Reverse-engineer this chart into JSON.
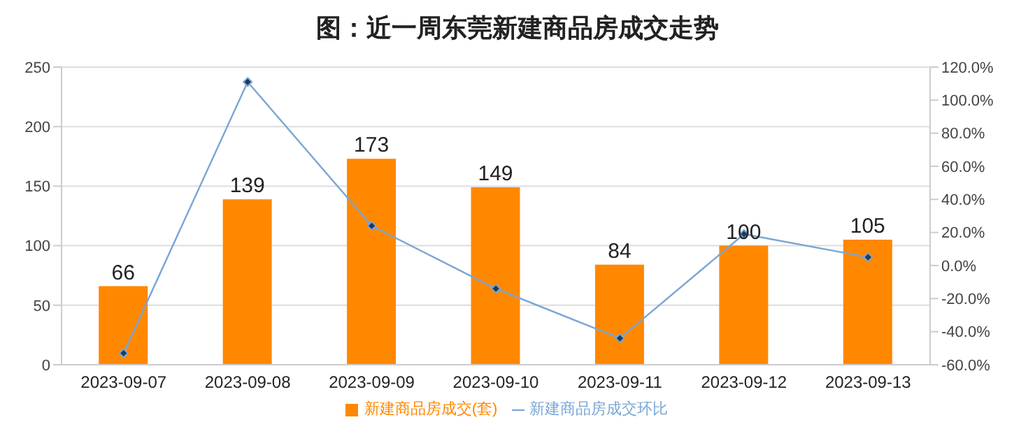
{
  "chart_data": {
    "type": "bar",
    "title": "图：近一周东莞新建商品房成交走势",
    "categories": [
      "2023-09-07",
      "2023-09-08",
      "2023-09-09",
      "2023-09-10",
      "2023-09-11",
      "2023-09-12",
      "2023-09-13"
    ],
    "series": [
      {
        "name": "新建商品房成交(套)",
        "color": "#ff8800",
        "values": [
          66,
          139,
          173,
          149,
          84,
          100,
          105
        ],
        "data_labels": true
      },
      {
        "name": "新建商品房成交环比",
        "type": "line",
        "axis": "y2",
        "color": "#7aa6d4",
        "marker": "diamond",
        "values": [
          -53,
          111,
          24,
          -14,
          -44,
          19,
          5
        ]
      }
    ],
    "ylim": [
      0,
      250
    ],
    "yticks": [
      0,
      50,
      100,
      150,
      200,
      250
    ],
    "y2lim": [
      -60,
      120
    ],
    "y2ticks": [
      {
        "value": -60,
        "label": "-60.0%"
      },
      {
        "value": -40,
        "label": "-40.0%"
      },
      {
        "value": -20,
        "label": "-20.0%"
      },
      {
        "value": 0,
        "label": "0.0%"
      },
      {
        "value": 20,
        "label": "20.0%"
      },
      {
        "value": 40,
        "label": "40.0%"
      },
      {
        "value": 60,
        "label": "60.0%"
      },
      {
        "value": 80,
        "label": "80.0%"
      },
      {
        "value": 100,
        "label": "100.0%"
      },
      {
        "value": 120,
        "label": "120.0%"
      }
    ],
    "grid": "y",
    "legend": "bottom"
  }
}
